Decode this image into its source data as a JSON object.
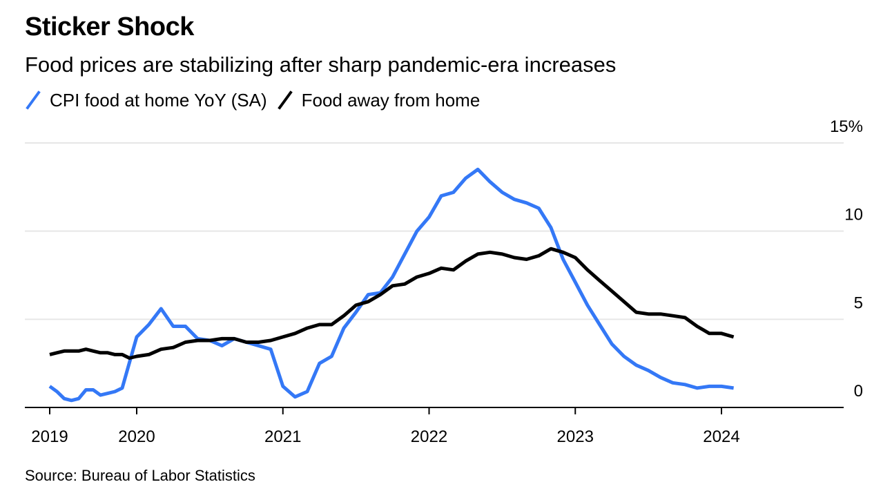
{
  "title": "Sticker Shock",
  "subtitle": "Food prices are stabilizing after sharp pandemic-era increases",
  "source": "Source: Bureau of Labor Statistics",
  "colors": {
    "series_1": "#3478f6",
    "series_2": "#000000",
    "grid": "#e6e6e6",
    "axis": "#000000"
  },
  "chart_data": {
    "type": "line",
    "title": "Sticker Shock",
    "subtitle": "Food prices are stabilizing after sharp pandemic-era increases",
    "xlabel": "",
    "ylabel": "",
    "ylim": [
      0,
      15
    ],
    "y_ticks": [
      0,
      5,
      10,
      15
    ],
    "y_tick_labels": [
      "0",
      "5",
      "10",
      "15%"
    ],
    "x_ticks": [
      "2019",
      "2020",
      "2021",
      "2022",
      "2023",
      "2024"
    ],
    "x_start": "2019-01",
    "x_end": "2024-07",
    "y_axis_position": "right",
    "grid": true,
    "legend_position": "top-left",
    "series": [
      {
        "name": "CPI food at home YoY (SA)",
        "color": "#3478f6",
        "points": [
          [
            "2019-01",
            1.2
          ],
          [
            "2019-02",
            0.9
          ],
          [
            "2019-03",
            0.5
          ],
          [
            "2019-04",
            0.4
          ],
          [
            "2019-05",
            0.5
          ],
          [
            "2019-06",
            1.0
          ],
          [
            "2019-07",
            1.0
          ],
          [
            "2019-08",
            0.7
          ],
          [
            "2019-09",
            0.8
          ],
          [
            "2019-10",
            0.9
          ],
          [
            "2019-11",
            1.1
          ],
          [
            "2020-01",
            4.0
          ],
          [
            "2020-02",
            4.7
          ],
          [
            "2020-03",
            5.6
          ],
          [
            "2020-04",
            4.6
          ],
          [
            "2020-05",
            4.6
          ],
          [
            "2020-06",
            3.9
          ],
          [
            "2020-07",
            3.8
          ],
          [
            "2020-08",
            3.5
          ],
          [
            "2020-09",
            3.9
          ],
          [
            "2020-10",
            3.7
          ],
          [
            "2020-11",
            3.5
          ],
          [
            "2020-12",
            3.3
          ],
          [
            "2021-01",
            1.2
          ],
          [
            "2021-02",
            0.6
          ],
          [
            "2021-03",
            0.9
          ],
          [
            "2021-04",
            2.5
          ],
          [
            "2021-05",
            2.9
          ],
          [
            "2021-06",
            4.5
          ],
          [
            "2021-07",
            5.4
          ],
          [
            "2021-08",
            6.4
          ],
          [
            "2021-09",
            6.5
          ],
          [
            "2021-10",
            7.4
          ],
          [
            "2021-11",
            8.7
          ],
          [
            "2021-12",
            10.0
          ],
          [
            "2022-01",
            10.8
          ],
          [
            "2022-02",
            12.0
          ],
          [
            "2022-03",
            12.2
          ],
          [
            "2022-04",
            13.0
          ],
          [
            "2022-05",
            13.5
          ],
          [
            "2022-06",
            12.8
          ],
          [
            "2022-07",
            12.2
          ],
          [
            "2022-08",
            11.8
          ],
          [
            "2022-09",
            11.6
          ],
          [
            "2022-10",
            11.3
          ],
          [
            "2022-11",
            10.2
          ],
          [
            "2022-12",
            8.4
          ],
          [
            "2023-01",
            7.1
          ],
          [
            "2023-02",
            5.8
          ],
          [
            "2023-03",
            4.7
          ],
          [
            "2023-04",
            3.6
          ],
          [
            "2023-05",
            2.9
          ],
          [
            "2023-06",
            2.4
          ],
          [
            "2023-07",
            2.1
          ],
          [
            "2023-08",
            1.7
          ],
          [
            "2023-09",
            1.4
          ],
          [
            "2023-10",
            1.3
          ],
          [
            "2023-11",
            1.1
          ],
          [
            "2023-12",
            1.2
          ],
          [
            "2024-01",
            1.2
          ],
          [
            "2024-02",
            1.1
          ]
        ]
      },
      {
        "name": "Food away from home",
        "color": "#000000",
        "points": [
          [
            "2019-01",
            3.0
          ],
          [
            "2019-02",
            3.1
          ],
          [
            "2019-03",
            3.2
          ],
          [
            "2019-04",
            3.2
          ],
          [
            "2019-05",
            3.2
          ],
          [
            "2019-06",
            3.3
          ],
          [
            "2019-07",
            3.2
          ],
          [
            "2019-08",
            3.1
          ],
          [
            "2019-09",
            3.1
          ],
          [
            "2019-10",
            3.0
          ],
          [
            "2019-11",
            3.0
          ],
          [
            "2019-12",
            2.8
          ],
          [
            "2020-01",
            2.9
          ],
          [
            "2020-02",
            3.0
          ],
          [
            "2020-03",
            3.3
          ],
          [
            "2020-04",
            3.4
          ],
          [
            "2020-05",
            3.7
          ],
          [
            "2020-06",
            3.8
          ],
          [
            "2020-07",
            3.8
          ],
          [
            "2020-08",
            3.9
          ],
          [
            "2020-09",
            3.9
          ],
          [
            "2020-10",
            3.7
          ],
          [
            "2020-11",
            3.7
          ],
          [
            "2020-12",
            3.8
          ],
          [
            "2021-01",
            4.0
          ],
          [
            "2021-02",
            4.2
          ],
          [
            "2021-03",
            4.5
          ],
          [
            "2021-04",
            4.7
          ],
          [
            "2021-05",
            4.7
          ],
          [
            "2021-06",
            5.2
          ],
          [
            "2021-07",
            5.8
          ],
          [
            "2021-08",
            6.0
          ],
          [
            "2021-09",
            6.4
          ],
          [
            "2021-10",
            6.9
          ],
          [
            "2021-11",
            7.0
          ],
          [
            "2021-12",
            7.4
          ],
          [
            "2022-01",
            7.6
          ],
          [
            "2022-02",
            7.9
          ],
          [
            "2022-03",
            7.8
          ],
          [
            "2022-04",
            8.3
          ],
          [
            "2022-05",
            8.7
          ],
          [
            "2022-06",
            8.8
          ],
          [
            "2022-07",
            8.7
          ],
          [
            "2022-08",
            8.5
          ],
          [
            "2022-09",
            8.4
          ],
          [
            "2022-10",
            8.6
          ],
          [
            "2022-11",
            9.0
          ],
          [
            "2022-12",
            8.8
          ],
          [
            "2023-01",
            8.5
          ],
          [
            "2023-02",
            7.8
          ],
          [
            "2023-03",
            7.2
          ],
          [
            "2023-04",
            6.6
          ],
          [
            "2023-05",
            6.0
          ],
          [
            "2023-06",
            5.4
          ],
          [
            "2023-07",
            5.3
          ],
          [
            "2023-08",
            5.3
          ],
          [
            "2023-09",
            5.2
          ],
          [
            "2023-10",
            5.1
          ],
          [
            "2023-11",
            4.6
          ],
          [
            "2023-12",
            4.2
          ],
          [
            "2024-01",
            4.2
          ],
          [
            "2024-02",
            4.0
          ]
        ]
      }
    ]
  }
}
